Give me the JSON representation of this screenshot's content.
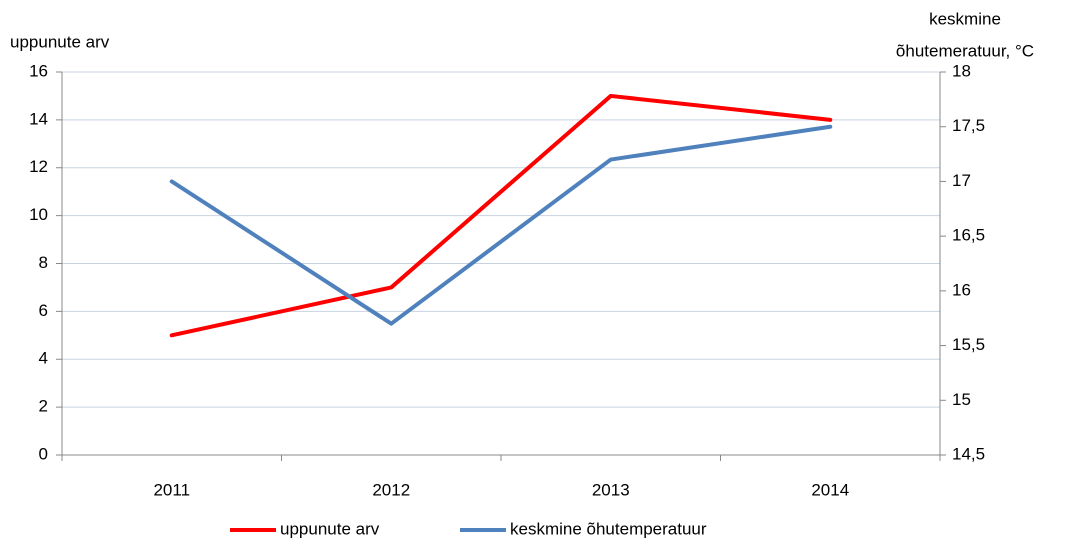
{
  "chart_data": {
    "type": "line",
    "ylabel": "uppunute arv",
    "y2label": [
      "keskmine",
      "õhutemeratuur, °C"
    ],
    "categories": [
      "2011",
      "2012",
      "2013",
      "2014"
    ],
    "series": [
      {
        "name": "uppunute arv",
        "color": "#ff0000",
        "values": [
          5,
          7,
          15,
          14
        ]
      },
      {
        "name": "keskmine õhutemperatuur",
        "color": "#4f81bd",
        "axis": "y2",
        "values": [
          17,
          15.7,
          17.2,
          17.5
        ]
      }
    ],
    "ylim": [
      0,
      16
    ],
    "yticks": [
      0,
      2,
      4,
      6,
      8,
      10,
      12,
      14,
      16
    ],
    "y2lim": [
      14.5,
      18
    ],
    "y2ticks": [
      {
        "value": 14.5,
        "label": "14,5"
      },
      15,
      {
        "value": 15.5,
        "label": "15,5"
      },
      16,
      {
        "value": 16.5,
        "label": "16,5"
      },
      17,
      {
        "value": 17.5,
        "label": "17,5"
      },
      18
    ],
    "grid": true,
    "legend": "bottom"
  }
}
